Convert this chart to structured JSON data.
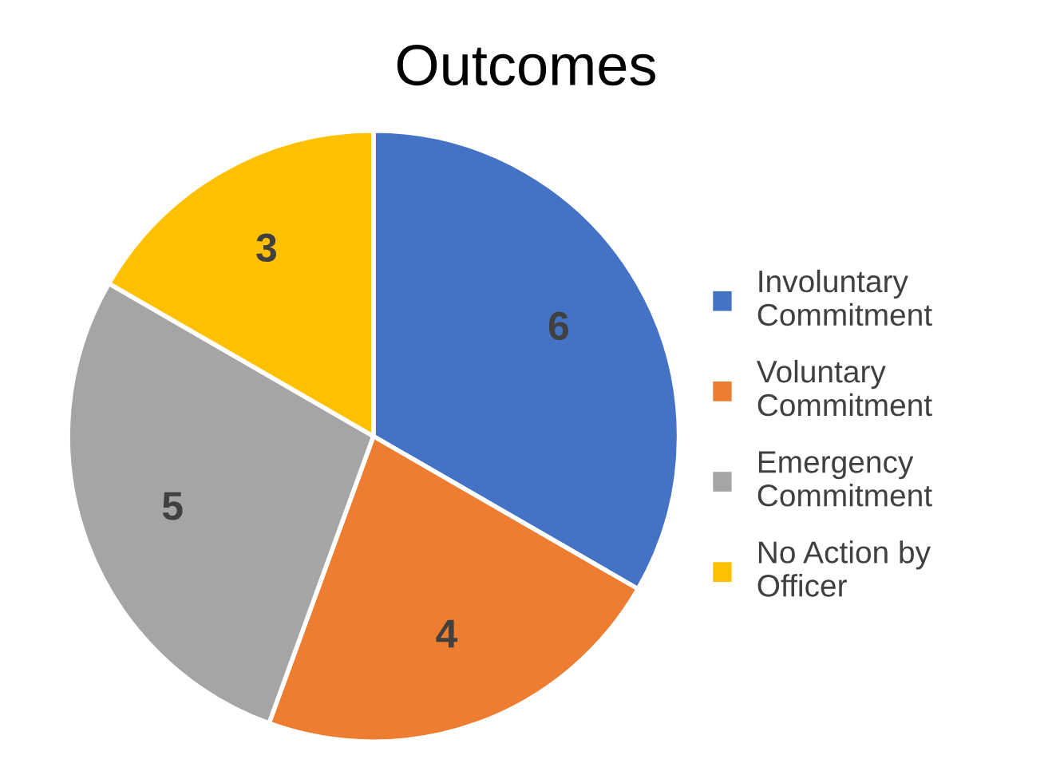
{
  "chart_data": {
    "type": "pie",
    "title": "Outcomes",
    "categories": [
      "Involuntary Commitment",
      "Voluntary Commitment",
      "Emergency Commitment",
      "No Action by Officer"
    ],
    "values": [
      6,
      4,
      5,
      3
    ],
    "colors": [
      "#4472c4",
      "#ed7d31",
      "#a5a5a5",
      "#ffc000"
    ],
    "data_labels": true,
    "legend": "right"
  }
}
